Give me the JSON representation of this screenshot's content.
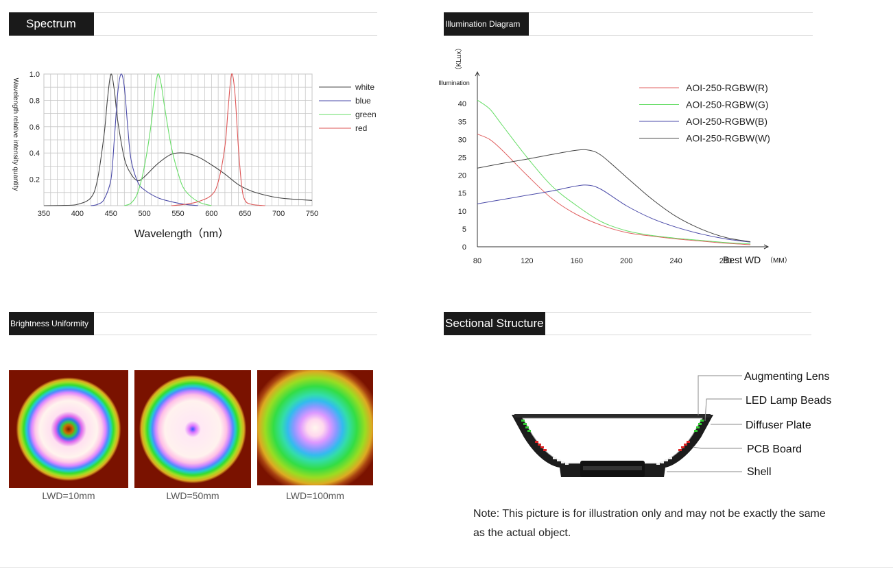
{
  "sections": {
    "spectrum": "Spectrum",
    "illumination": "Illumination Diagram",
    "uniformity": "Brightness Uniformity",
    "structure": "Sectional Structure"
  },
  "chart_data": [
    {
      "type": "line",
      "title": "",
      "xlabel": "Wavelength（nm）",
      "ylabel": "Wavelength relative intensity quantity",
      "xlim": [
        350,
        750
      ],
      "ylim": [
        0,
        1.0
      ],
      "x_ticks": [
        "350",
        "400",
        "450",
        "500",
        "550",
        "600",
        "650",
        "700",
        "750"
      ],
      "y_ticks": [
        "0.2",
        "0.4",
        "0.6",
        "0.8",
        "1.0"
      ],
      "grid": true,
      "legend": "right",
      "series": [
        {
          "name": "white",
          "color": "#444444",
          "x": [
            350,
            380,
            400,
            420,
            430,
            440,
            445,
            450,
            455,
            460,
            470,
            480,
            490,
            500,
            520,
            540,
            560,
            580,
            600,
            620,
            640,
            660,
            680,
            700,
            720,
            750
          ],
          "y": [
            0,
            0.002,
            0.01,
            0.06,
            0.2,
            0.55,
            0.82,
            1.0,
            0.88,
            0.65,
            0.36,
            0.24,
            0.19,
            0.22,
            0.32,
            0.39,
            0.4,
            0.37,
            0.31,
            0.24,
            0.16,
            0.11,
            0.08,
            0.06,
            0.05,
            0.04
          ]
        },
        {
          "name": "blue",
          "color": "#4a4aa8",
          "x": [
            420,
            430,
            440,
            450,
            455,
            460,
            465,
            470,
            475,
            480,
            490,
            500,
            520,
            540,
            560,
            580
          ],
          "y": [
            0,
            0.01,
            0.05,
            0.2,
            0.5,
            0.85,
            1.0,
            0.9,
            0.6,
            0.35,
            0.18,
            0.12,
            0.06,
            0.03,
            0.01,
            0
          ]
        },
        {
          "name": "green",
          "color": "#66dd66",
          "x": [
            470,
            480,
            490,
            500,
            510,
            515,
            520,
            525,
            530,
            540,
            550,
            560,
            580,
            600
          ],
          "y": [
            0,
            0.02,
            0.1,
            0.3,
            0.62,
            0.85,
            1.0,
            0.92,
            0.75,
            0.45,
            0.25,
            0.12,
            0.03,
            0
          ]
        },
        {
          "name": "red",
          "color": "#dd5555",
          "x": [
            540,
            560,
            580,
            600,
            610,
            620,
            625,
            630,
            635,
            640,
            645,
            650,
            660,
            680
          ],
          "y": [
            0,
            0.01,
            0.03,
            0.08,
            0.18,
            0.45,
            0.75,
            1.0,
            0.85,
            0.45,
            0.15,
            0.04,
            0.01,
            0
          ]
        }
      ]
    },
    {
      "type": "line",
      "title": "",
      "ylabel": "Illumination",
      "yunit": "（KLux）",
      "xlabel": "Best WD",
      "xunit": "（MM）",
      "xlim": [
        80,
        310
      ],
      "ylim": [
        0,
        42
      ],
      "x_ticks": [
        "80",
        "120",
        "160",
        "200",
        "240",
        "280"
      ],
      "y_ticks": [
        "0",
        "5",
        "10",
        "15",
        "20",
        "25",
        "30",
        "35",
        "40"
      ],
      "grid": false,
      "legend": "top-right",
      "series": [
        {
          "name": "AOI-250-RGBW(R)",
          "color": "#e06060",
          "x": [
            80,
            90,
            100,
            120,
            140,
            160,
            180,
            200,
            220,
            240,
            260,
            280,
            300
          ],
          "y": [
            31.5,
            30,
            27,
            20,
            13.5,
            9,
            6,
            4,
            3,
            2.2,
            1.6,
            1,
            0.6
          ]
        },
        {
          "name": "AOI-250-RGBW(G)",
          "color": "#66dd66",
          "x": [
            80,
            90,
            100,
            120,
            140,
            160,
            180,
            200,
            220,
            240,
            260,
            280,
            300
          ],
          "y": [
            41,
            38.5,
            34,
            25,
            17,
            11.5,
            7,
            4.5,
            3.2,
            2.4,
            1.8,
            1.2,
            0.8
          ]
        },
        {
          "name": "AOI-250-RGBW(B)",
          "color": "#4a4aa8",
          "x": [
            80,
            100,
            120,
            140,
            160,
            170,
            180,
            200,
            220,
            240,
            260,
            280,
            300
          ],
          "y": [
            12,
            13.2,
            14.4,
            15.6,
            17,
            17.2,
            16,
            11.5,
            8,
            5.5,
            3.6,
            2.2,
            1.3
          ]
        },
        {
          "name": "AOI-250-RGBW(W)",
          "color": "#444444",
          "x": [
            80,
            100,
            120,
            140,
            160,
            170,
            180,
            200,
            220,
            240,
            260,
            280,
            300
          ],
          "y": [
            22,
            23.3,
            24.5,
            25.8,
            27,
            27,
            25.5,
            19.5,
            13.5,
            8.5,
            5,
            2.6,
            1.4
          ]
        }
      ]
    }
  ],
  "uniformity": {
    "labels": [
      "LWD=10mm",
      "LWD=50mm",
      "LWD=100mm"
    ]
  },
  "structure": {
    "labels": [
      "Augmenting Lens",
      "LED Lamp Beads",
      "Diffuser Plate",
      "PCB Board",
      "Shell"
    ],
    "note": "Note: This picture is for illustration only and may not be exactly the same as the actual object."
  }
}
